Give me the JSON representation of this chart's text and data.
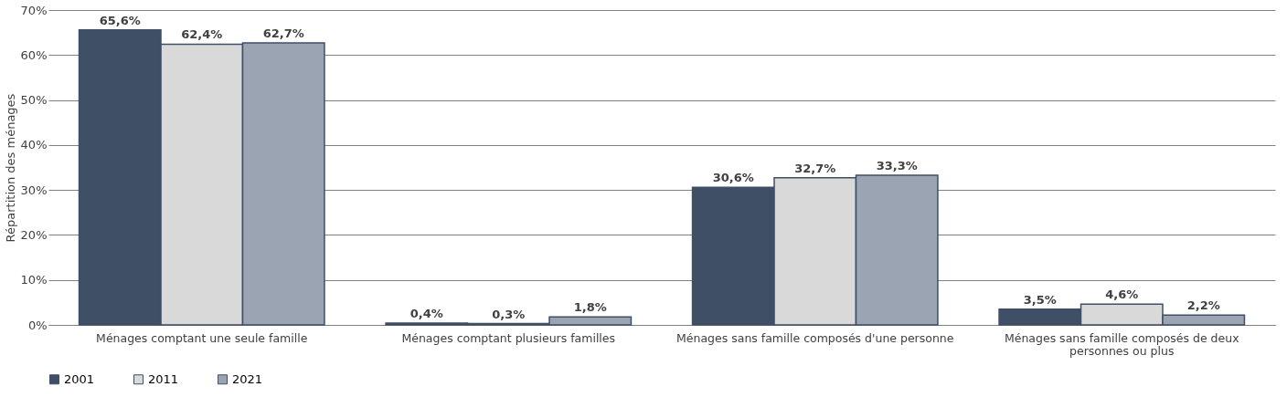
{
  "chart_data": {
    "type": "bar",
    "ylabel": "Répartition des ménages",
    "categories": [
      "Ménages comptant une seule famille",
      "Ménages comptant plusieurs familles",
      "Ménages sans famille composés d'une personne",
      "Ménages sans famille composés de deux personnes ou plus"
    ],
    "series": [
      {
        "name": "2001",
        "color": "#3f4f66",
        "values": [
          65.6,
          0.4,
          30.6,
          3.5
        ],
        "value_labels": [
          "65,6%",
          "0,4%",
          "30,6%",
          "3,5%"
        ]
      },
      {
        "name": "2011",
        "color": "#d9d9d9",
        "values": [
          62.4,
          0.3,
          32.7,
          4.6
        ],
        "value_labels": [
          "62,4%",
          "0,3%",
          "32,7%",
          "4,6%"
        ]
      },
      {
        "name": "2021",
        "color": "#9ba4b3",
        "values": [
          62.7,
          1.8,
          33.3,
          2.2
        ],
        "value_labels": [
          "62,7%",
          "1,8%",
          "33,3%",
          "2,2%"
        ]
      }
    ],
    "ylim": [
      0,
      70
    ],
    "yticks": [
      {
        "value": 0,
        "label": "0%"
      },
      {
        "value": 10,
        "label": "10%"
      },
      {
        "value": 20,
        "label": "20%"
      },
      {
        "value": 30,
        "label": "30%"
      },
      {
        "value": 40,
        "label": "40%"
      },
      {
        "value": 50,
        "label": "50%"
      },
      {
        "value": 60,
        "label": "60%"
      },
      {
        "value": 70,
        "label": "70%"
      }
    ],
    "grid": "y",
    "legend": "bottom"
  }
}
